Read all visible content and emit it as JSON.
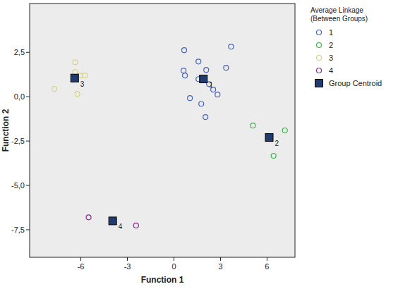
{
  "chart_data": {
    "type": "scatter",
    "x_label": "Function 1",
    "y_label": "Function 2",
    "xlim": [
      -9.3,
      7.8
    ],
    "ylim": [
      -9.05,
      5.25
    ],
    "xticks": [
      -6,
      -3,
      0,
      3,
      6
    ],
    "yticks": [
      {
        "value": 2.5,
        "label": "2,5"
      },
      {
        "value": 0,
        "label": "0,0"
      },
      {
        "value": -2.5,
        "label": "-2,5"
      },
      {
        "value": -5,
        "label": "-5,0"
      },
      {
        "value": -7.5,
        "label": "-7,5"
      }
    ],
    "grid": false,
    "legend": "right",
    "legend_title": [
      "Average Linkage",
      "(Between Groups)"
    ],
    "series": [
      {
        "name": "1",
        "color": "#4a63c0",
        "marker": "circle",
        "x": [
          0.66,
          3.68,
          1.58,
          3.36,
          0.62,
          0.71,
          2.08,
          1.58,
          2.26,
          2.53,
          2.81,
          1.03,
          1.76,
          2.03
        ],
        "values": [
          2.62,
          2.82,
          1.98,
          1.63,
          1.47,
          1.19,
          1.51,
          0.99,
          0.71,
          0.4,
          0.12,
          -0.08,
          -0.4,
          -1.15
        ]
      },
      {
        "name": "2",
        "color": "#3fb24a",
        "marker": "circle",
        "x": [
          5.09,
          7.15,
          6.42
        ],
        "values": [
          -1.63,
          -1.9,
          -3.33
        ]
      },
      {
        "name": "3",
        "color": "#d9d48c",
        "marker": "circle",
        "x": [
          -7.7,
          -6.37,
          -6.37,
          -6.05,
          -5.73,
          -6.23
        ],
        "values": [
          0.44,
          1.94,
          1.39,
          1.19,
          1.19,
          0.16
        ]
      },
      {
        "name": "4",
        "color": "#8a2b8e",
        "marker": "circle",
        "x": [
          -5.5,
          -2.44
        ],
        "values": [
          -6.8,
          -7.26
        ]
      },
      {
        "name": "Group Centroid",
        "color": "#1f3b6f",
        "marker": "square",
        "x": [
          1.9,
          6.14,
          -6.4,
          -3.95
        ],
        "values": [
          1.0,
          -2.3,
          1.05,
          -7.0
        ],
        "labels": [
          "1",
          "2",
          "3",
          "4"
        ]
      }
    ]
  }
}
